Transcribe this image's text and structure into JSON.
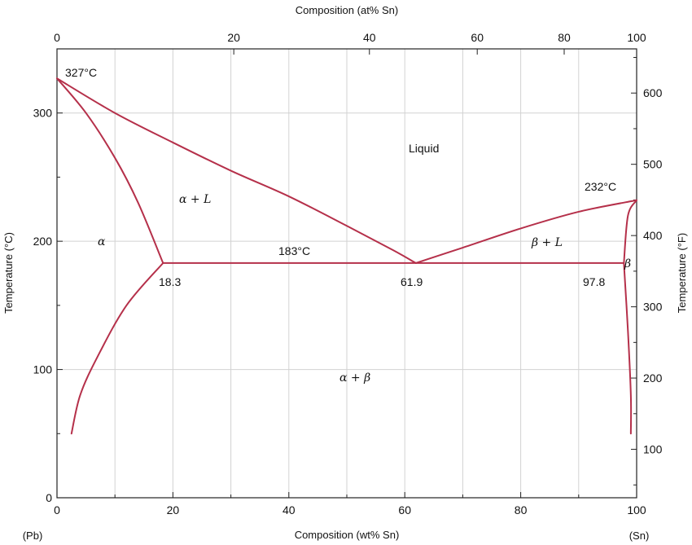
{
  "chart_data": {
    "type": "line",
    "title": "",
    "xlabel": "Composition (wt% Sn)",
    "x2label": "Composition (at% Sn)",
    "ylabel": "Temperature (°C)",
    "y2label": "Temperature (°F)",
    "xlim": [
      0,
      100
    ],
    "ylim": [
      0,
      350
    ],
    "y2lim": [
      32,
      662
    ],
    "grid": true,
    "x_ticks": [
      "0",
      "20",
      "40",
      "60",
      "80",
      "100"
    ],
    "x2_ticks": [
      {
        "label": "0",
        "wt": 0
      },
      {
        "label": "20",
        "wt": 30.5
      },
      {
        "label": "40",
        "wt": 53.9
      },
      {
        "label": "60",
        "wt": 72.5
      },
      {
        "label": "80",
        "wt": 87.5
      },
      {
        "label": "100",
        "wt": 100
      }
    ],
    "y_ticks": [
      "0",
      "100",
      "200",
      "300"
    ],
    "y2_ticks": [
      "100",
      "200",
      "300",
      "400",
      "500",
      "600"
    ],
    "x_endpoints": {
      "left": "(Pb)",
      "right": "(Sn)"
    },
    "series": [
      {
        "points": [
          [
            0,
            327
          ],
          [
            10,
            300
          ],
          [
            20,
            277
          ],
          [
            30,
            255
          ],
          [
            40,
            235
          ],
          [
            50,
            212
          ],
          [
            58,
            193
          ],
          [
            61.9,
            183
          ]
        ]
      },
      {
        "points": [
          [
            61.9,
            183
          ],
          [
            70,
            195
          ],
          [
            80,
            210
          ],
          [
            90,
            223
          ],
          [
            100,
            232
          ]
        ]
      },
      {
        "points": [
          [
            0,
            327
          ],
          [
            5,
            300
          ],
          [
            10,
            265
          ],
          [
            14,
            230
          ],
          [
            18.3,
            183
          ]
        ]
      },
      {
        "points": [
          [
            18.3,
            183
          ],
          [
            12,
            150
          ],
          [
            7,
            110
          ],
          [
            4,
            80
          ],
          [
            2.5,
            50
          ]
        ]
      },
      {
        "points": [
          [
            18.3,
            183
          ],
          [
            97.8,
            183
          ]
        ]
      },
      {
        "points": [
          [
            100,
            232
          ],
          [
            98.5,
            220
          ],
          [
            97.8,
            183
          ]
        ]
      },
      {
        "points": [
          [
            97.8,
            183
          ],
          [
            98.5,
            130
          ],
          [
            99,
            80
          ],
          [
            99,
            50
          ]
        ]
      }
    ],
    "annotations": {
      "t_pb": "327°C",
      "t_sn": "232°C",
      "t_eutectic": "183°C",
      "c_alpha": "18.3",
      "c_eutectic": "61.9",
      "c_beta": "97.8",
      "liquid": "Liquid",
      "alpha": "α",
      "alpha_l": "α + L",
      "beta_l": "β + L",
      "beta": "β",
      "alpha_beta": "α + β"
    }
  }
}
